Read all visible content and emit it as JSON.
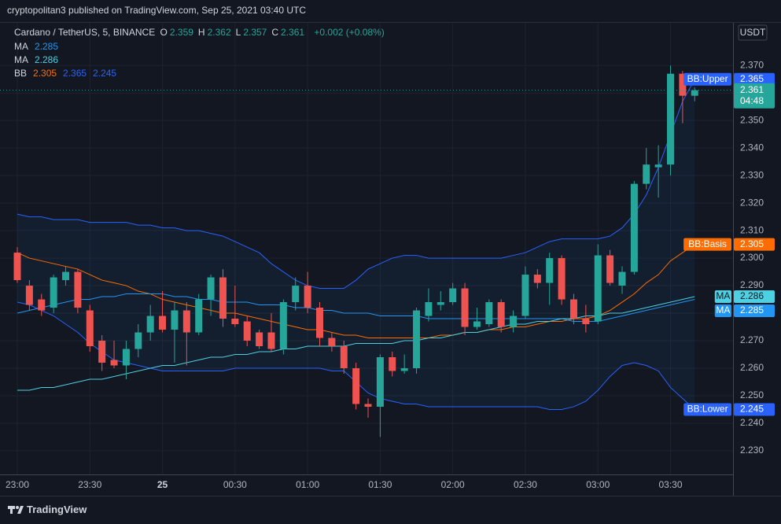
{
  "header": {
    "published": "cryptopolitan3 published on TradingView.com, Sep 25, 2021 03:40 UTC"
  },
  "footer": {
    "brand": "TradingView"
  },
  "chart_data": {
    "type": "candlestick",
    "title": "Cardano / TetherUS, 5, BINANCE",
    "ohlc_labels": [
      "O",
      "H",
      "L",
      "C"
    ],
    "change": "+0.002 (+0.08%)",
    "currency": "USDT",
    "countdown": "04:48",
    "legend_labels": [
      "MA",
      "MA",
      "BB"
    ],
    "up_color": "#26a69a",
    "down_color": "#ef5350",
    "grid": true,
    "ylim": [
      2.2214,
      2.3855
    ],
    "yticks": [
      {
        "value": 2.23,
        "label": "2.230"
      },
      {
        "value": 2.24,
        "label": "2.240"
      },
      {
        "value": 2.25,
        "label": "2.250"
      },
      {
        "value": 2.26,
        "label": "2.260"
      },
      {
        "value": 2.27,
        "label": "2.270"
      },
      {
        "value": 2.28,
        "label": "2.280"
      },
      {
        "value": 2.29,
        "label": "2.290"
      },
      {
        "value": 2.3,
        "label": "2.300"
      },
      {
        "value": 2.31,
        "label": "2.310"
      },
      {
        "value": 2.32,
        "label": "2.320"
      },
      {
        "value": 2.33,
        "label": "2.330"
      },
      {
        "value": 2.34,
        "label": "2.340"
      },
      {
        "value": 2.35,
        "label": "2.350"
      },
      {
        "value": 2.36,
        "label": "2.360"
      },
      {
        "value": 2.37,
        "label": "2.370"
      }
    ],
    "categories": [
      "23:00",
      null,
      null,
      null,
      null,
      null,
      "23:30",
      null,
      null,
      null,
      null,
      null,
      "25",
      null,
      null,
      null,
      null,
      null,
      "00:30",
      null,
      null,
      null,
      null,
      null,
      "01:00",
      null,
      null,
      null,
      null,
      null,
      "01:30",
      null,
      null,
      null,
      null,
      null,
      "02:00",
      null,
      null,
      null,
      null,
      null,
      "02:30",
      null,
      null,
      null,
      null,
      null,
      "03:00",
      null,
      null,
      null,
      null,
      null,
      "03:30",
      null,
      null
    ],
    "open": [
      2.302,
      2.29,
      2.285,
      2.282,
      2.292,
      2.295,
      2.281,
      2.27,
      2.263,
      2.261,
      2.267,
      2.273,
      2.279,
      2.274,
      2.281,
      2.273,
      2.285,
      2.293,
      2.278,
      2.277,
      2.273,
      2.273,
      2.267,
      2.284,
      2.29,
      2.282,
      2.271,
      2.268,
      2.26,
      2.247,
      2.246,
      2.264,
      2.259,
      2.26,
      2.279,
      2.283,
      2.284,
      2.289,
      2.275,
      2.276,
      2.284,
      2.275,
      2.279,
      2.294,
      2.291,
      2.3,
      2.285,
      2.278,
      2.277,
      2.301,
      2.29,
      2.295,
      2.327,
      2.333,
      2.334,
      2.367,
      2.359
    ],
    "high": [
      2.304,
      2.292,
      2.287,
      2.294,
      2.297,
      2.296,
      2.283,
      2.272,
      2.27,
      2.27,
      2.276,
      2.283,
      2.288,
      2.284,
      2.284,
      2.287,
      2.294,
      2.296,
      2.29,
      2.279,
      2.274,
      2.28,
      2.285,
      2.293,
      2.295,
      2.284,
      2.273,
      2.27,
      2.262,
      2.249,
      2.265,
      2.266,
      2.265,
      2.282,
      2.289,
      2.288,
      2.291,
      2.291,
      2.282,
      2.285,
      2.285,
      2.281,
      2.297,
      2.296,
      2.302,
      2.301,
      2.287,
      2.283,
      2.305,
      2.303,
      2.297,
      2.328,
      2.34,
      2.341,
      2.37,
      2.368,
      2.362
    ],
    "low": [
      2.291,
      2.281,
      2.279,
      2.28,
      2.29,
      2.28,
      2.266,
      2.259,
      2.26,
      2.256,
      2.264,
      2.27,
      2.273,
      2.262,
      2.261,
      2.272,
      2.279,
      2.275,
      2.275,
      2.268,
      2.267,
      2.266,
      2.265,
      2.281,
      2.28,
      2.268,
      2.266,
      2.258,
      2.245,
      2.242,
      2.235,
      2.257,
      2.258,
      2.258,
      2.277,
      2.281,
      2.283,
      2.272,
      2.274,
      2.275,
      2.273,
      2.273,
      2.278,
      2.289,
      2.283,
      2.283,
      2.276,
      2.273,
      2.276,
      2.29,
      2.287,
      2.294,
      2.325,
      2.322,
      2.33,
      2.349,
      2.357
    ],
    "close": [
      2.292,
      2.283,
      2.281,
      2.293,
      2.295,
      2.282,
      2.268,
      2.262,
      2.261,
      2.267,
      2.273,
      2.279,
      2.274,
      2.281,
      2.273,
      2.285,
      2.293,
      2.278,
      2.276,
      2.27,
      2.268,
      2.267,
      2.284,
      2.29,
      2.282,
      2.271,
      2.268,
      2.26,
      2.247,
      2.246,
      2.264,
      2.259,
      2.26,
      2.281,
      2.284,
      2.284,
      2.289,
      2.275,
      2.277,
      2.284,
      2.275,
      2.279,
      2.294,
      2.291,
      2.3,
      2.285,
      2.278,
      2.276,
      2.301,
      2.291,
      2.295,
      2.327,
      2.334,
      2.334,
      2.367,
      2.359,
      2.361
    ],
    "series": [
      {
        "name": "BB:Upper",
        "color": "#2962ff",
        "values": [
          2.316,
          2.315,
          2.315,
          2.314,
          2.314,
          2.314,
          2.313,
          2.313,
          2.313,
          2.313,
          2.312,
          2.312,
          2.311,
          2.311,
          2.31,
          2.31,
          2.309,
          2.308,
          2.306,
          2.304,
          2.302,
          2.298,
          2.295,
          2.292,
          2.29,
          2.289,
          2.289,
          2.289,
          2.292,
          2.296,
          2.298,
          2.3,
          2.301,
          2.301,
          2.3,
          2.3,
          2.3,
          2.3,
          2.3,
          2.3,
          2.3,
          2.301,
          2.302,
          2.304,
          2.306,
          2.307,
          2.307,
          2.307,
          2.307,
          2.308,
          2.311,
          2.316,
          2.323,
          2.333,
          2.345,
          2.357,
          2.365
        ]
      },
      {
        "name": "BB:Basis",
        "color": "#ff6d00",
        "values": [
          2.302,
          2.3,
          2.299,
          2.298,
          2.297,
          2.296,
          2.294,
          2.292,
          2.291,
          2.29,
          2.288,
          2.287,
          2.285,
          2.284,
          2.283,
          2.282,
          2.281,
          2.28,
          2.28,
          2.279,
          2.278,
          2.277,
          2.276,
          2.275,
          2.274,
          2.274,
          2.273,
          2.272,
          2.272,
          2.271,
          2.271,
          2.271,
          2.271,
          2.271,
          2.271,
          2.272,
          2.272,
          2.273,
          2.273,
          2.274,
          2.274,
          2.275,
          2.275,
          2.276,
          2.277,
          2.277,
          2.278,
          2.278,
          2.279,
          2.281,
          2.284,
          2.287,
          2.291,
          2.294,
          2.299,
          2.302,
          2.305
        ]
      },
      {
        "name": "BB:Lower",
        "color": "#2962ff",
        "values": [
          2.284,
          2.283,
          2.281,
          2.279,
          2.276,
          2.273,
          2.269,
          2.266,
          2.263,
          2.262,
          2.261,
          2.26,
          2.259,
          2.259,
          2.259,
          2.259,
          2.259,
          2.259,
          2.26,
          2.26,
          2.26,
          2.26,
          2.26,
          2.26,
          2.26,
          2.26,
          2.259,
          2.259,
          2.255,
          2.251,
          2.249,
          2.248,
          2.247,
          2.247,
          2.246,
          2.246,
          2.246,
          2.246,
          2.246,
          2.246,
          2.246,
          2.246,
          2.246,
          2.246,
          2.245,
          2.245,
          2.246,
          2.248,
          2.252,
          2.257,
          2.261,
          2.262,
          2.261,
          2.259,
          2.253,
          2.249,
          2.245
        ]
      },
      {
        "name": "MA",
        "color": "#2196f3",
        "values": [
          2.28,
          2.281,
          2.282,
          2.283,
          2.284,
          2.285,
          2.285,
          2.286,
          2.286,
          2.287,
          2.287,
          2.287,
          2.287,
          2.286,
          2.286,
          2.285,
          2.285,
          2.284,
          2.284,
          2.284,
          2.283,
          2.283,
          2.283,
          2.282,
          2.282,
          2.281,
          2.281,
          2.28,
          2.28,
          2.28,
          2.279,
          2.279,
          2.279,
          2.279,
          2.278,
          2.278,
          2.278,
          2.278,
          2.278,
          2.278,
          2.278,
          2.278,
          2.278,
          2.278,
          2.278,
          2.278,
          2.277,
          2.277,
          2.277,
          2.278,
          2.279,
          2.28,
          2.281,
          2.282,
          2.283,
          2.284,
          2.285
        ]
      },
      {
        "name": "MA",
        "color": "#4dd0e1",
        "values": [
          2.252,
          2.252,
          2.253,
          2.253,
          2.254,
          2.255,
          2.256,
          2.256,
          2.257,
          2.258,
          2.259,
          2.26,
          2.261,
          2.261,
          2.262,
          2.263,
          2.264,
          2.264,
          2.265,
          2.265,
          2.266,
          2.266,
          2.267,
          2.267,
          2.268,
          2.268,
          2.268,
          2.268,
          2.269,
          2.269,
          2.269,
          2.269,
          2.27,
          2.27,
          2.271,
          2.271,
          2.272,
          2.273,
          2.273,
          2.274,
          2.275,
          2.276,
          2.276,
          2.277,
          2.277,
          2.278,
          2.278,
          2.279,
          2.279,
          2.28,
          2.28,
          2.281,
          2.282,
          2.283,
          2.284,
          2.285,
          2.286
        ]
      }
    ]
  }
}
